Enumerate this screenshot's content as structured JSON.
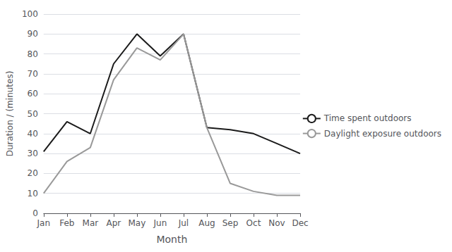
{
  "chart_data": {
    "type": "line",
    "categories": [
      "Jan",
      "Feb",
      "Mar",
      "Apr",
      "May",
      "Jun",
      "Jul",
      "Aug",
      "Sep",
      "Oct",
      "Nov",
      "Dec"
    ],
    "series": [
      {
        "name": "Time spent outdoors",
        "color": "#1a1a1a",
        "values": [
          31,
          46,
          40,
          75,
          90,
          79,
          90,
          43,
          42,
          40,
          35,
          30
        ]
      },
      {
        "name": "Daylight exposure outdoors",
        "color": "#999999",
        "values": [
          10,
          26,
          33,
          67,
          83,
          77,
          90,
          43,
          15,
          11,
          9,
          9
        ]
      }
    ],
    "xlabel": "Month",
    "ylabel": "Duration / (minutes)",
    "ylim": [
      0,
      100
    ],
    "yticks": [
      0,
      10,
      20,
      30,
      40,
      50,
      60,
      70,
      80,
      90,
      100
    ],
    "grid": true,
    "legend": "right"
  }
}
